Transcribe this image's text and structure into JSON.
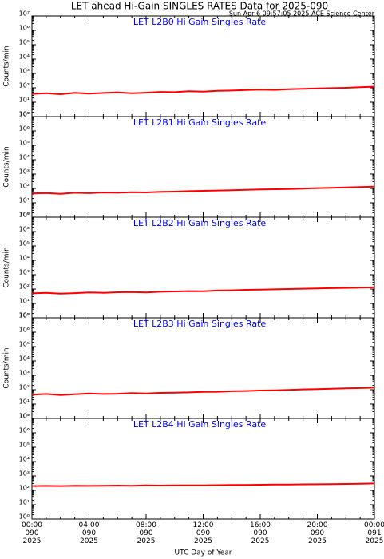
{
  "header": {
    "title": "LET ahead Hi-Gain SINGLES RATES Data for 2025-090",
    "subtitle": "Sun Apr  6 09:57:05 2025 ACE Science Center"
  },
  "chart_data": [
    {
      "type": "line",
      "title": "LET L2B0 Hi Gain Singles Rate",
      "ylabel": "Counts/min",
      "log_y": true,
      "x": [
        0,
        1,
        2,
        3,
        4,
        5,
        6,
        7,
        8,
        9,
        10,
        11,
        12,
        13,
        14,
        15,
        16,
        17,
        18,
        19,
        20,
        21,
        22,
        23,
        24
      ],
      "series": [
        {
          "color": "#ff0000",
          "values": [
            38,
            42,
            36,
            45,
            40,
            44,
            48,
            42,
            46,
            52,
            50,
            58,
            55,
            62,
            65,
            70,
            75,
            72,
            80,
            85,
            90,
            95,
            100,
            110,
            120
          ]
        }
      ],
      "xlim": [
        0,
        24
      ],
      "xticks": [
        0,
        4,
        8,
        12,
        16,
        20,
        24
      ],
      "ylim": [
        1,
        10000000
      ],
      "yticks": [
        {
          "value": 1,
          "label": "10⁰"
        },
        {
          "value": 10,
          "label": "10¹"
        },
        {
          "value": 100,
          "label": "10²"
        },
        {
          "value": 1000,
          "label": "10³"
        },
        {
          "value": 10000,
          "label": "10⁴"
        },
        {
          "value": 100000,
          "label": "10⁵"
        },
        {
          "value": 1000000,
          "label": "10⁶"
        },
        {
          "value": 10000000,
          "label": "10⁷"
        }
      ]
    },
    {
      "type": "line",
      "title": "LET L2B1 Hi Gain Singles Rate",
      "ylabel": "Counts/min",
      "log_y": true,
      "x": [
        0,
        1,
        2,
        3,
        4,
        5,
        6,
        7,
        8,
        9,
        10,
        11,
        12,
        13,
        14,
        15,
        16,
        17,
        18,
        19,
        20,
        21,
        22,
        23,
        24
      ],
      "series": [
        {
          "color": "#ff0000",
          "values": [
            45,
            48,
            42,
            50,
            47,
            52,
            50,
            55,
            53,
            58,
            60,
            65,
            68,
            72,
            75,
            80,
            85,
            88,
            92,
            98,
            105,
            110,
            118,
            125,
            135
          ]
        }
      ],
      "xlim": [
        0,
        24
      ],
      "xticks": [
        0,
        4,
        8,
        12,
        16,
        20,
        24
      ],
      "ylim": [
        1,
        10000000
      ],
      "yticks": [
        {
          "value": 1,
          "label": "10⁰"
        },
        {
          "value": 10,
          "label": "10¹"
        },
        {
          "value": 100,
          "label": "10²"
        },
        {
          "value": 1000,
          "label": "10³"
        },
        {
          "value": 10000,
          "label": "10⁴"
        },
        {
          "value": 100000,
          "label": "10⁵"
        },
        {
          "value": 1000000,
          "label": "10⁶"
        },
        {
          "value": 10000000,
          "label": "10⁷"
        }
      ]
    },
    {
      "type": "line",
      "title": "LET L2B2 Hi Gain Singles Rate",
      "ylabel": "Counts/min",
      "log_y": true,
      "x": [
        0,
        1,
        2,
        3,
        4,
        5,
        6,
        7,
        8,
        9,
        10,
        11,
        12,
        13,
        14,
        15,
        16,
        17,
        18,
        19,
        20,
        21,
        22,
        23,
        24
      ],
      "series": [
        {
          "color": "#ff0000",
          "values": [
            50,
            55,
            48,
            52,
            58,
            55,
            60,
            62,
            58,
            65,
            68,
            72,
            70,
            78,
            82,
            88,
            90,
            95,
            100,
            105,
            110,
            115,
            120,
            125,
            130
          ]
        }
      ],
      "xlim": [
        0,
        24
      ],
      "xticks": [
        0,
        4,
        8,
        12,
        16,
        20,
        24
      ],
      "ylim": [
        1,
        10000000
      ],
      "yticks": [
        {
          "value": 1,
          "label": "10⁰"
        },
        {
          "value": 10,
          "label": "10¹"
        },
        {
          "value": 100,
          "label": "10²"
        },
        {
          "value": 1000,
          "label": "10³"
        },
        {
          "value": 10000,
          "label": "10⁴"
        },
        {
          "value": 100000,
          "label": "10⁵"
        },
        {
          "value": 1000000,
          "label": "10⁶"
        },
        {
          "value": 10000000,
          "label": "10⁷"
        }
      ]
    },
    {
      "type": "line",
      "title": "LET L2B3 Hi Gain Singles Rate",
      "ylabel": "Counts/min",
      "log_y": true,
      "x": [
        0,
        1,
        2,
        3,
        4,
        5,
        6,
        7,
        8,
        9,
        10,
        11,
        12,
        13,
        14,
        15,
        16,
        17,
        18,
        19,
        20,
        21,
        22,
        23,
        24
      ],
      "series": [
        {
          "color": "#ff0000",
          "values": [
            45,
            50,
            42,
            48,
            55,
            50,
            52,
            58,
            55,
            60,
            62,
            65,
            70,
            72,
            78,
            82,
            88,
            92,
            98,
            105,
            110,
            118,
            125,
            130,
            140
          ]
        }
      ],
      "xlim": [
        0,
        24
      ],
      "xticks": [
        0,
        4,
        8,
        12,
        16,
        20,
        24
      ],
      "ylim": [
        1,
        10000000
      ],
      "yticks": [
        {
          "value": 1,
          "label": "10⁰"
        },
        {
          "value": 10,
          "label": "10¹"
        },
        {
          "value": 100,
          "label": "10²"
        },
        {
          "value": 1000,
          "label": "10³"
        },
        {
          "value": 10000,
          "label": "10⁴"
        },
        {
          "value": 100000,
          "label": "10⁵"
        },
        {
          "value": 1000000,
          "label": "10⁶"
        },
        {
          "value": 10000000,
          "label": "10⁷"
        }
      ]
    },
    {
      "type": "line",
      "title": "LET L2B4 Hi Gain Singles Rate",
      "xlabel": "UTC Day of Year",
      "log_y": true,
      "x": [
        0,
        1,
        2,
        3,
        4,
        5,
        6,
        7,
        8,
        9,
        10,
        11,
        12,
        13,
        14,
        15,
        16,
        17,
        18,
        19,
        20,
        21,
        22,
        23,
        24
      ],
      "series": [
        {
          "color": "#ff0000",
          "values": [
            200,
            205,
            200,
            210,
            205,
            210,
            215,
            210,
            220,
            215,
            220,
            225,
            225,
            230,
            235,
            240,
            245,
            250,
            255,
            260,
            265,
            270,
            280,
            290,
            300
          ]
        }
      ],
      "xlim": [
        0,
        24
      ],
      "xticks": [
        {
          "value": 0,
          "label": "00:00\n090\n2025"
        },
        {
          "value": 4,
          "label": "04:00\n090\n2025"
        },
        {
          "value": 8,
          "label": "08:00\n090\n2025"
        },
        {
          "value": 12,
          "label": "12:00\n090\n2025"
        },
        {
          "value": 16,
          "label": "16:00\n090\n2025"
        },
        {
          "value": 20,
          "label": "20:00\n090\n2025"
        },
        {
          "value": 24,
          "label": "00:00\n091\n2025"
        }
      ],
      "ylim": [
        1,
        10000000
      ],
      "yticks": [
        {
          "value": 1,
          "label": "10⁰"
        },
        {
          "value": 10,
          "label": "10¹"
        },
        {
          "value": 100,
          "label": "10²"
        },
        {
          "value": 1000,
          "label": "10³"
        },
        {
          "value": 10000,
          "label": "10⁴"
        },
        {
          "value": 100000,
          "label": "10⁵"
        },
        {
          "value": 1000000,
          "label": "10⁶"
        },
        {
          "value": 10000000,
          "label": "10⁷"
        }
      ]
    }
  ]
}
